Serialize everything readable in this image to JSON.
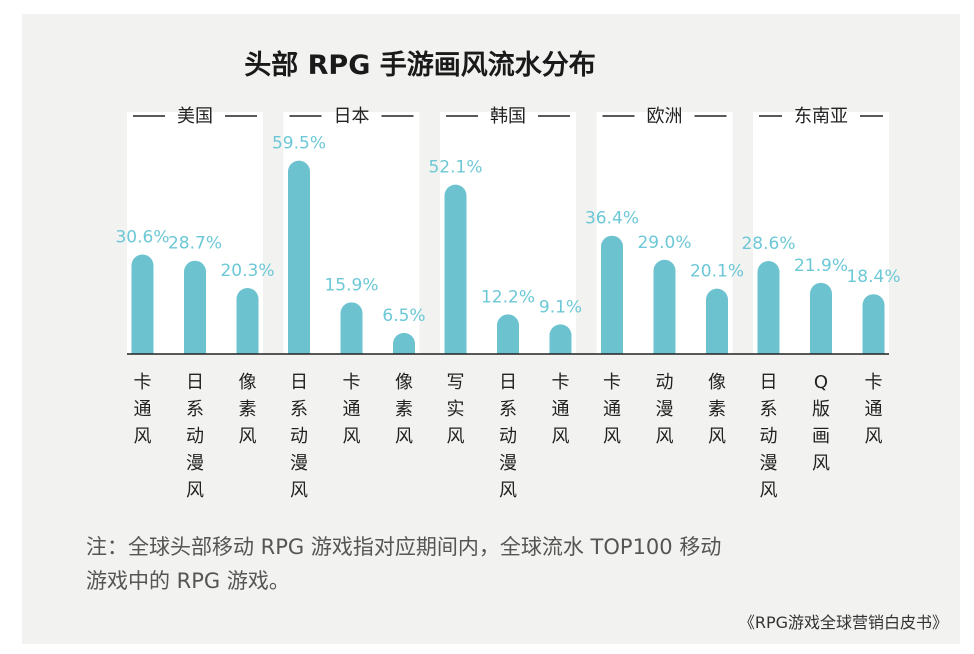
{
  "chart_data": {
    "type": "bar",
    "title": "头部 RPG 手游画风流水分布",
    "unit": "%",
    "ylim": [
      0,
      65
    ],
    "groups": [
      {
        "region": "美国",
        "bars": [
          {
            "label": "卡通风",
            "value": 30.6,
            "value_label": "30.6%"
          },
          {
            "label": "日系动漫风",
            "value": 28.7,
            "value_label": "28.7%"
          },
          {
            "label": "像素风",
            "value": 20.3,
            "value_label": "20.3%"
          }
        ]
      },
      {
        "region": "日本",
        "bars": [
          {
            "label": "日系动漫风",
            "value": 59.5,
            "value_label": "59.5%"
          },
          {
            "label": "卡通风",
            "value": 15.9,
            "value_label": "15.9%"
          },
          {
            "label": "像素风",
            "value": 6.5,
            "value_label": "6.5%"
          }
        ]
      },
      {
        "region": "韩国",
        "bars": [
          {
            "label": "写实风",
            "value": 52.1,
            "value_label": "52.1%"
          },
          {
            "label": "日系动漫风",
            "value": 12.2,
            "value_label": "12.2%"
          },
          {
            "label": "卡通风",
            "value": 9.1,
            "value_label": "9.1%"
          }
        ]
      },
      {
        "region": "欧洲",
        "bars": [
          {
            "label": "卡通风",
            "value": 36.4,
            "value_label": "36.4%"
          },
          {
            "label": "动漫风",
            "value": 29.0,
            "value_label": "29.0%"
          },
          {
            "label": "像素风",
            "value": 20.1,
            "value_label": "20.1%"
          }
        ]
      },
      {
        "region": "东南亚",
        "bars": [
          {
            "label": "日系动漫风",
            "value": 28.6,
            "value_label": "28.6%"
          },
          {
            "label": "Q版画风",
            "value": 21.9,
            "value_label": "21.9%"
          },
          {
            "label": "卡通风",
            "value": 18.4,
            "value_label": "18.4%"
          }
        ]
      }
    ]
  },
  "note_lines": [
    "注：全球头部移动 RPG 游戏指对应期间内，全球流水 TOP100 移动",
    "游戏中的 RPG 游戏。"
  ],
  "source": "《RPG游戏全球营销白皮书》",
  "colors": {
    "bar": "#6cc3cf",
    "value_label": "#6cc8d6",
    "band": "#ffffff",
    "background": "#f2f2f0"
  }
}
